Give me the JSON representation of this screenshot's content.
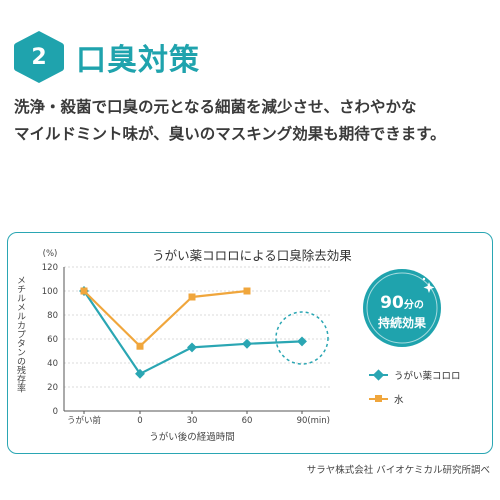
{
  "section": {
    "number": "2",
    "title": "口臭対策",
    "accent_color": "#1fa3ad"
  },
  "description": [
    "洗浄・殺菌で口臭の元となる細菌を減少させ、さわやかな",
    "マイルドミント味が、臭いのマスキング効果も期待できます。"
  ],
  "badge": {
    "line1_number": "90",
    "line1_unit": "分の",
    "line2": "持続効果",
    "color": "#1fa3ad"
  },
  "source": "サラヤ株式会社 バイオケミカル研究所調べ",
  "chart_data": {
    "type": "line",
    "title": "うがい薬コロロによる口臭除去効果",
    "ylabel": "メチルメルカプタンの残存率",
    "yunit": "(%)",
    "xlabel": "うがい後の経過時間",
    "xunit": "(min)",
    "ylim": [
      0,
      120
    ],
    "yticks": [
      "0",
      "20",
      "40",
      "60",
      "80",
      "100",
      "120"
    ],
    "categories": [
      "うがい前",
      "0",
      "30",
      "60",
      "90"
    ],
    "grid": true,
    "legend": "right",
    "series": [
      {
        "name": "うがい薬コロロ",
        "color": "#2aa6b3",
        "marker": "diamond",
        "values": [
          100,
          31,
          53,
          56,
          58
        ]
      },
      {
        "name": "水",
        "color": "#f0a63c",
        "marker": "square",
        "values": [
          100,
          54,
          95,
          100,
          null
        ]
      }
    ]
  }
}
